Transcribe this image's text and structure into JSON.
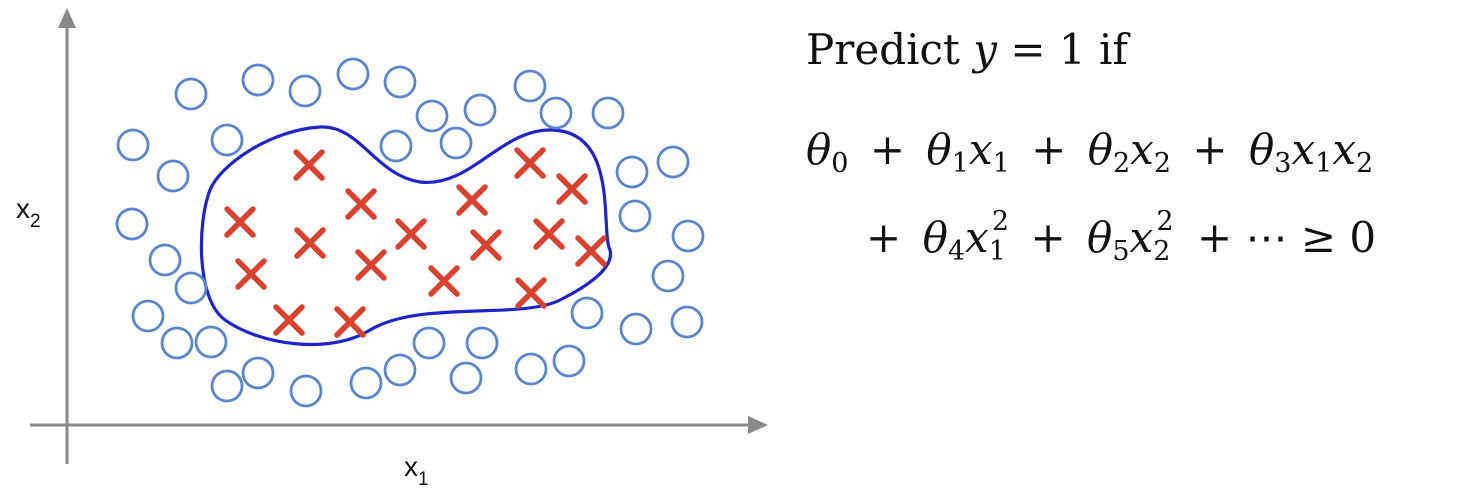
{
  "colors": {
    "axis": "#8a8a8a",
    "boundary": "#1f23c8",
    "negative_marker": "#5b86cc",
    "positive_marker": "#d9422e",
    "text": "#111111"
  },
  "axes": {
    "x_label": "x",
    "x_sub": "1",
    "y_label": "x",
    "y_sub": "2"
  },
  "legend_text": {
    "predict": "Predict",
    "y": "y",
    "eq_one": " = 1 if"
  },
  "equation_line1": {
    "theta": "θ",
    "plus": "+",
    "x": "x",
    "s0": "0",
    "s1": "1",
    "s2": "2",
    "s3": "3"
  },
  "equation_line2": {
    "s4": "4",
    "s5": "5",
    "sq": "2",
    "tail": "+ ⋯ ≥ 0"
  },
  "chart_data": {
    "type": "scatter",
    "series": [
      {
        "marker": "circle",
        "points": [
          [
            133,
            145
          ],
          [
            191,
            94
          ],
          [
            258,
            80
          ],
          [
            305,
            91
          ],
          [
            353,
            74
          ],
          [
            400,
            82
          ],
          [
            432,
            116
          ],
          [
            480,
            110
          ],
          [
            530,
            86
          ],
          [
            556,
            113
          ],
          [
            608,
            113
          ],
          [
            227,
            140
          ],
          [
            173,
            176
          ],
          [
            396,
            146
          ],
          [
            456,
            143
          ],
          [
            632,
            172
          ],
          [
            673,
            162
          ],
          [
            132,
            224
          ],
          [
            165,
            260
          ],
          [
            191,
            288
          ],
          [
            635,
            216
          ],
          [
            688,
            236
          ],
          [
            668,
            276
          ],
          [
            148,
            316
          ],
          [
            177,
            343
          ],
          [
            211,
            342
          ],
          [
            587,
            313
          ],
          [
            636,
            329
          ],
          [
            687,
            322
          ],
          [
            429,
            343
          ],
          [
            482,
            343
          ],
          [
            227,
            386
          ],
          [
            258,
            373
          ],
          [
            306,
            391
          ],
          [
            366,
            383
          ],
          [
            400,
            370
          ],
          [
            466,
            378
          ],
          [
            531,
            369
          ],
          [
            569,
            361
          ]
        ]
      },
      {
        "marker": "cross",
        "points": [
          [
            309,
            165
          ],
          [
            240,
            222
          ],
          [
            361,
            204
          ],
          [
            411,
            234
          ],
          [
            310,
            243
          ],
          [
            251,
            274
          ],
          [
            371,
            265
          ],
          [
            472,
            200
          ],
          [
            486,
            245
          ],
          [
            444,
            281
          ],
          [
            530,
            163
          ],
          [
            572,
            189
          ],
          [
            549,
            234
          ],
          [
            591,
            251
          ],
          [
            531,
            293
          ],
          [
            289,
            320
          ],
          [
            350,
            322
          ]
        ]
      }
    ]
  }
}
